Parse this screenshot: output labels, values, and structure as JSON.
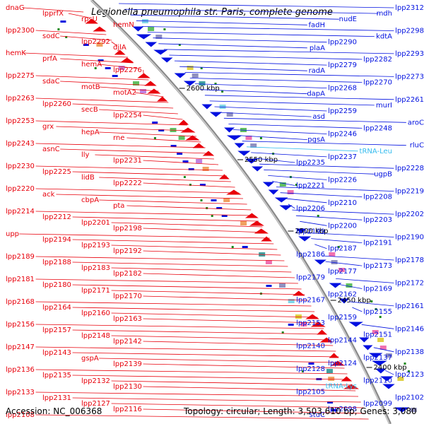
{
  "title": "Legionella pneumophila str. Paris, complete genome",
  "footer": {
    "accession": "Accession: NC_006368",
    "summary": "Topology: circular; Length: 3,503,610 bp; Genes: 3,080"
  },
  "colors": {
    "forward": "#e8000b",
    "reverse": "#0010e0",
    "rna": "#33bbee",
    "backbone": "#888888",
    "tick": "#1a8a1a"
  },
  "scale_ticks": [
    "2600 kbp",
    "2550 kbp",
    "2500 kbp",
    "2450 kbp",
    "2400 kbp"
  ],
  "left_labels": [
    "dnaG",
    "lpprfX",
    "rpsU",
    "hemN",
    "lpp2300",
    "sodC",
    "lpp2292",
    "djlA",
    "hemK",
    "prfA",
    "hemA",
    "lpp2276",
    "lpp2275",
    "sdaC",
    "motB",
    "motA2",
    "lpp2263",
    "lpp2260",
    "secB",
    "lpp2254",
    "lpp2253",
    "grx",
    "hepA",
    "rne",
    "lpp2243",
    "asnC",
    "lly",
    "lpp2231",
    "lpp2230",
    "lpp2225",
    "lidB",
    "lpp2222",
    "lpp2220",
    "ack",
    "cbpA",
    "pta",
    "lpp2214",
    "lpp2212",
    "lpp2201",
    "lpp2198",
    "upp",
    "lpp2194",
    "lpp2193",
    "lpp2192",
    "lpp2189",
    "lpp2188",
    "lpp2183",
    "lpp2182",
    "lpp2181",
    "lpp2180",
    "lpp2171",
    "lpp2170",
    "lpp2168",
    "lpp2164",
    "lpp2160",
    "lpp2163",
    "lpp2156",
    "lpp2157",
    "lpp2148",
    "lpp2142",
    "lpp2147",
    "lpp2143",
    "gspA",
    "lpp2139",
    "lpp2136",
    "lpp2135",
    "lpp2132",
    "lpp2130",
    "lpp2133",
    "lpp2131",
    "lpp2127",
    "lpp2116",
    "lpp2108"
  ],
  "right_labels": [
    "lpp2312",
    "mdh",
    "nudE",
    "fadH",
    "lpp2298",
    "kdtA",
    "lpp2290",
    "plaA",
    "lpp2293",
    "lpp2282",
    "lpp2279",
    "radA",
    "lpp2273",
    "lpp2270",
    "lpp2268",
    "dapA",
    "lpp2261",
    "murI",
    "lpp2259",
    "asd",
    "aroC",
    "lpp2248",
    "lpp2246",
    "pgsA",
    "rluC",
    "tRNA-Leu",
    "lpp2237",
    "lpp2235",
    "lpp2228",
    "ugpB",
    "lpp2226",
    "lpp2221",
    "lpp2219",
    "lpp2208",
    "lpp2210",
    "lpp2206",
    "lpp2202",
    "lpp2203",
    "lpp2200",
    "lpp2199",
    "lpp2190",
    "lpp2191",
    "lpp2187",
    "lpp2186",
    "lpp2178",
    "lpp2173",
    "lpp2177",
    "lpp2179",
    "lpp2172",
    "lpp2169",
    "lpp2162",
    "lpp2167",
    "lpp2161",
    "lpp2155",
    "lpp2159",
    "lpp2153",
    "lpp2146",
    "lpp2151",
    "lpp2144",
    "lpp2140",
    "lpp2138",
    "lpp2137",
    "lpp2124",
    "lpp2128",
    "lpp2123",
    "lpp2110",
    "tRNA-Lys",
    "lpp2105",
    "lpp2102",
    "lpp2099",
    "lpp2098",
    "stuC"
  ]
}
